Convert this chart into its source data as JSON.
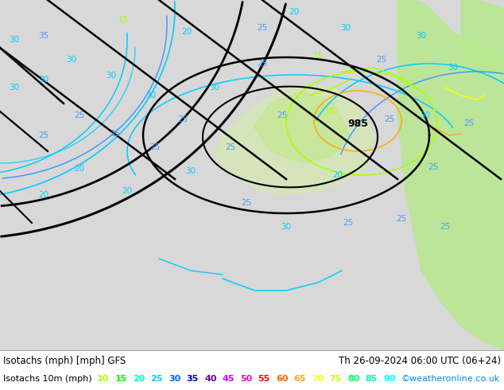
{
  "title_left": "Isotachs (mph) [mph] GFS",
  "title_right": "Th 26-09-2024 06:00 UTC (06+24)",
  "legend_label": "Isotachs 10m (mph)",
  "legend_values": [
    10,
    15,
    20,
    25,
    30,
    35,
    40,
    45,
    50,
    55,
    60,
    65,
    70,
    75,
    80,
    85,
    90
  ],
  "legend_colors": [
    "#aaff00",
    "#00ff00",
    "#00ffcc",
    "#00ccff",
    "#0066ff",
    "#0000cc",
    "#660099",
    "#cc00ff",
    "#ff00cc",
    "#ff0000",
    "#ff6600",
    "#ffaa00",
    "#ffff00",
    "#ccff00",
    "#00ff66",
    "#00ffaa",
    "#00ffff"
  ],
  "credit": "©weatheronline.co.uk",
  "bg_color": "#ffffff",
  "bottom_bg": "#e0e0e0",
  "title_fontsize": 8.5,
  "legend_fontsize": 8,
  "credit_color": "#0088ff",
  "map_gray": "#d8d8d8",
  "map_green": "#b8e890",
  "map_green_center": "#c8e8a0",
  "isobar_color": "#000000",
  "isotach_cyan": "#00ccff",
  "isotach_blue": "#0066ff",
  "isotach_yellow": "#aaff00",
  "isotach_orange": "#ffaa00"
}
